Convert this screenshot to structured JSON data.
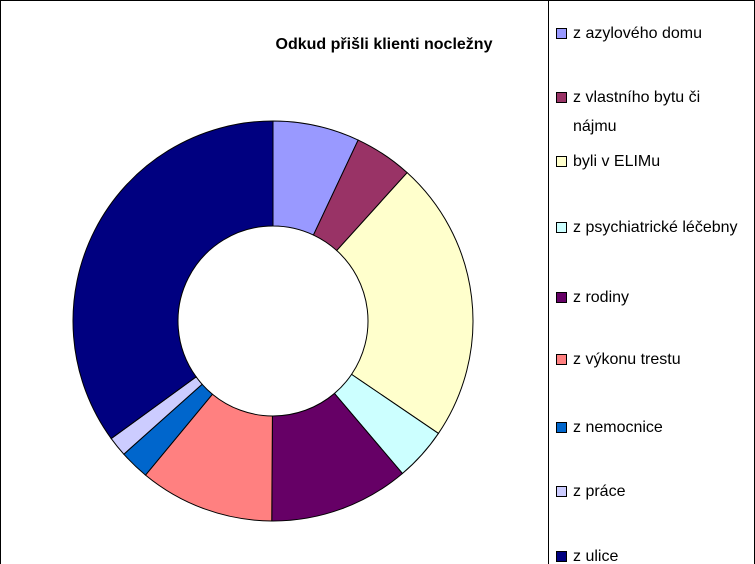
{
  "chart_data": {
    "type": "donut",
    "title": "Odkud přišli klienti nocležny",
    "categories": [
      "z azylového domu",
      "z vlastního bytu či nájmu",
      "byli v ELIMu",
      "z psychiatrické léčebny",
      "z rodiny",
      "z výkonu trestu",
      "z nemocnice",
      "z práce",
      "z ulice"
    ],
    "values": [
      7,
      4.7,
      22.8,
      4.3,
      11.3,
      10.9,
      2.4,
      1.6,
      35
    ],
    "colors": [
      "#9999FF",
      "#993366",
      "#FFFFCC",
      "#CCFFFF",
      "#660066",
      "#FF8080",
      "#0066CC",
      "#CCCCFF",
      "#000080"
    ],
    "legend": "right"
  }
}
